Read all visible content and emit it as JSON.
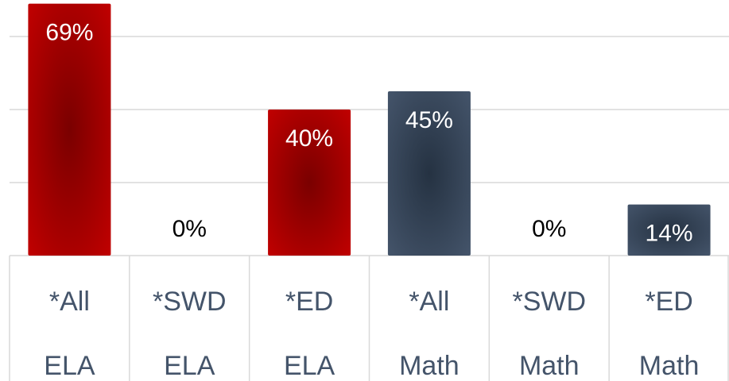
{
  "chart_data": {
    "type": "bar",
    "categories": [
      "*All ELA",
      "*SWD ELA",
      "*ED ELA",
      "*All Math",
      "*SWD Math",
      "*ED Math"
    ],
    "values": [
      69,
      0,
      40,
      45,
      0,
      14
    ],
    "value_labels": [
      "69%",
      "0%",
      "40%",
      "45%",
      "0%",
      "14%"
    ],
    "colors": [
      "#c00000",
      "#c00000",
      "#c00000",
      "#44546a",
      "#44546a",
      "#44546a"
    ],
    "ylim": [
      0,
      70
    ],
    "yticks": [
      20,
      40,
      60
    ],
    "grid": true
  }
}
